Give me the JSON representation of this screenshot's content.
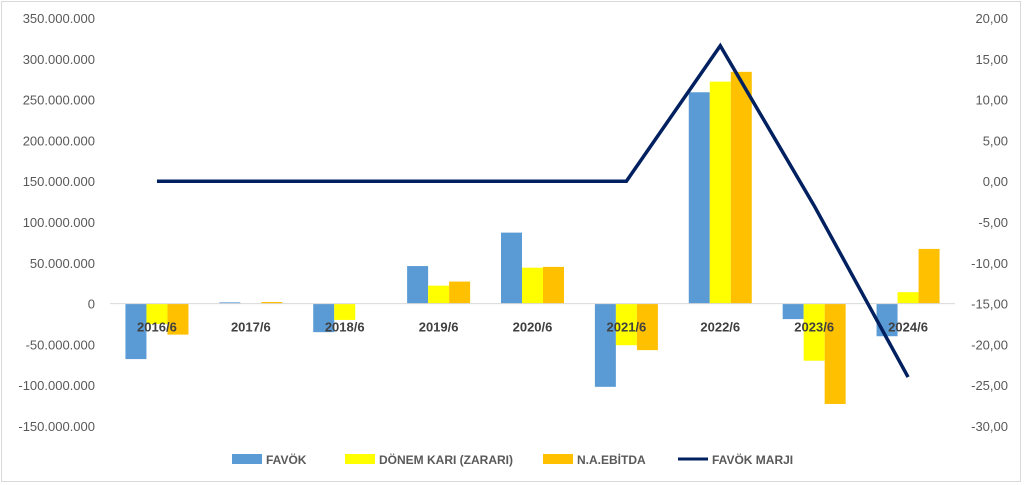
{
  "chart_data": {
    "type": "bar",
    "categories": [
      "2016/6",
      "2017/6",
      "2018/6",
      "2019/6",
      "2020/6",
      "2021/6",
      "2022/6",
      "2023/6",
      "2024/6"
    ],
    "series": [
      {
        "name": "FAVÖK",
        "kind": "bar",
        "axis": "left",
        "color": "#5b9bd5",
        "values": [
          -68000000,
          1500000,
          -35000000,
          46000000,
          87000000,
          -102000000,
          259000000,
          -19000000,
          -40000000
        ]
      },
      {
        "name": "DÖNEM KARI (ZARARI)",
        "kind": "bar",
        "axis": "left",
        "color": "#ffff00",
        "values": [
          -25000000,
          0,
          -20000000,
          22000000,
          44000000,
          -51000000,
          272000000,
          -70000000,
          14000000
        ]
      },
      {
        "name": "N.A.EBİTDA",
        "kind": "bar",
        "axis": "left",
        "color": "#ffc000",
        "values": [
          -38000000,
          2000000,
          0,
          27000000,
          45000000,
          -57000000,
          284000000,
          -123000000,
          67000000
        ]
      },
      {
        "name": "FAVÖK MARJI",
        "kind": "line",
        "axis": "right",
        "color": "#002060",
        "values": [
          0,
          0,
          0,
          0,
          0,
          0,
          16.6,
          -3,
          -24
        ]
      }
    ],
    "y_left": {
      "min": -150000000,
      "max": 350000000,
      "step": 50000000,
      "ticks": [
        "350.000.000",
        "300.000.000",
        "250.000.000",
        "200.000.000",
        "150.000.000",
        "100.000.000",
        "50.000.000",
        "0",
        "-50.000.000",
        "-100.000.000",
        "-150.000.000"
      ]
    },
    "y_right": {
      "min": -30,
      "max": 20,
      "step": 5,
      "ticks": [
        "20,00",
        "15,00",
        "10,00",
        "5,00",
        "0,00",
        "-5,00",
        "-10,00",
        "-15,00",
        "-20,00",
        "-25,00",
        "-30,00"
      ]
    },
    "grid": false,
    "legend_position": "bottom"
  }
}
